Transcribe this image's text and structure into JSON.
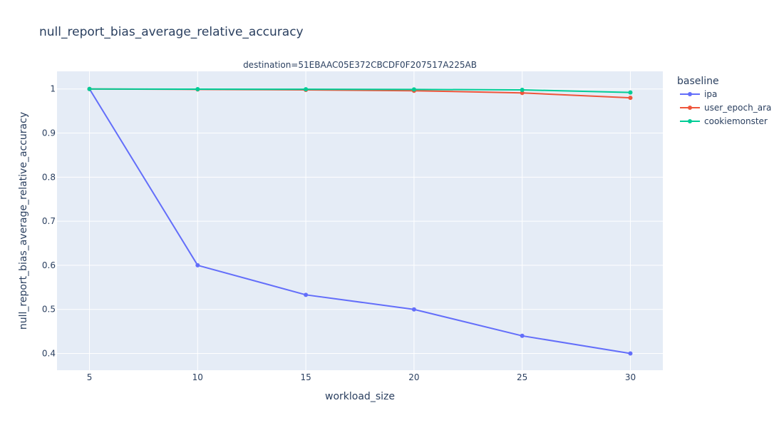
{
  "chart_data": {
    "type": "line",
    "title": "null_report_bias_average_relative_accuracy",
    "facet_title": "destination=51EBAAC05E372CBCDF0F207517A225AB",
    "xlabel": "workload_size",
    "ylabel": "null_report_bias_average_relative_accuracy",
    "x": [
      5,
      10,
      15,
      20,
      25,
      30
    ],
    "xlim": [
      3.5,
      31.5
    ],
    "ylim": [
      0.362,
      1.04
    ],
    "x_ticks": [
      5,
      10,
      15,
      20,
      25,
      30
    ],
    "y_ticks": [
      0.4,
      0.5,
      0.6,
      0.7,
      0.8,
      0.9,
      1
    ],
    "grid": true,
    "legend_title": "baseline",
    "legend_position": "right",
    "series": [
      {
        "name": "ipa",
        "color": "#636efa",
        "values": [
          1.0,
          0.6,
          0.533,
          0.5,
          0.44,
          0.4
        ]
      },
      {
        "name": "user_epoch_ara",
        "color": "#ef553b",
        "values": [
          1.0,
          0.999,
          0.998,
          0.996,
          0.991,
          0.98
        ]
      },
      {
        "name": "cookiemonster",
        "color": "#00cc96",
        "values": [
          1.0,
          0.9995,
          0.9993,
          0.999,
          0.998,
          0.992
        ]
      }
    ]
  }
}
